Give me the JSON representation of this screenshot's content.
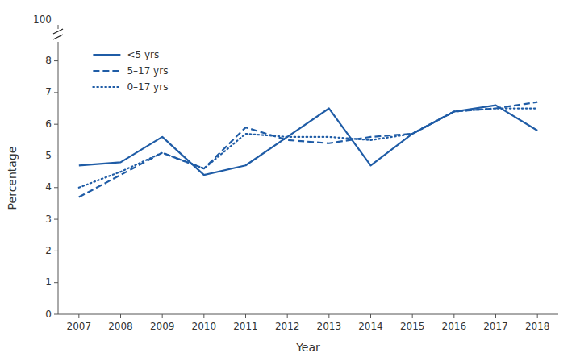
{
  "chart_data": {
    "type": "line",
    "x_label": "Year",
    "y_label": "Percentage",
    "x": [
      2007,
      2008,
      2009,
      2010,
      2011,
      2012,
      2013,
      2014,
      2015,
      2016,
      2017,
      2018
    ],
    "series": [
      {
        "name": "<5 yrs",
        "color": "#1F5CA6",
        "line_style": "solid",
        "values": [
          4.7,
          4.8,
          5.6,
          4.4,
          4.7,
          5.6,
          6.5,
          4.7,
          5.7,
          6.4,
          6.6,
          5.8
        ]
      },
      {
        "name": "5–17 yrs",
        "color": "#1F5CA6",
        "line_style": "dashed",
        "values": [
          3.7,
          4.4,
          5.1,
          4.6,
          5.9,
          5.5,
          5.4,
          5.6,
          5.7,
          6.4,
          6.5,
          6.7
        ]
      },
      {
        "name": "0–17 yrs",
        "color": "#1F5CA6",
        "line_style": "dotted",
        "values": [
          4.0,
          4.5,
          5.1,
          4.6,
          5.7,
          5.6,
          5.6,
          5.5,
          5.7,
          6.4,
          6.5,
          6.5
        ]
      }
    ],
    "xlim": [
      2006.5,
      2018.5
    ],
    "xticks": [
      2007,
      2008,
      2009,
      2010,
      2011,
      2012,
      2013,
      2014,
      2015,
      2016,
      2017,
      2018
    ],
    "ylim": [
      0,
      8.6
    ],
    "yticks": [
      0,
      1,
      2,
      3,
      4,
      5,
      6,
      7,
      8
    ],
    "annotations": [
      "100"
    ],
    "grid": false,
    "legend": "upper left"
  }
}
